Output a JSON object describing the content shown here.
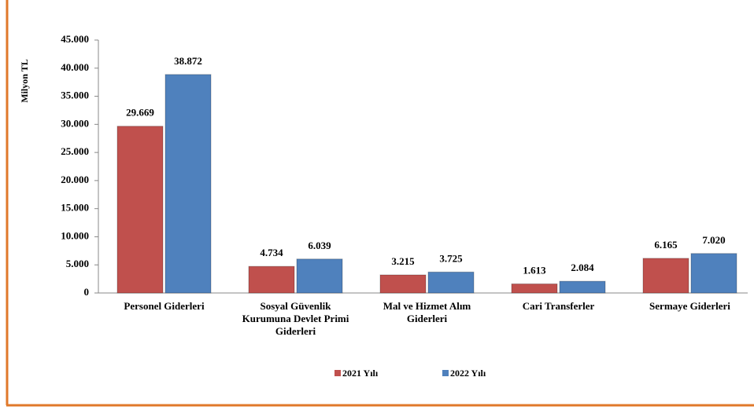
{
  "chart_data": {
    "type": "bar",
    "y_label": "Milyon TL",
    "categories": [
      "Personel Giderleri",
      "Sosyal Güvenlik Kurumuna Devlet Primi Giderleri",
      "Mal ve Hizmet Alım Giderleri",
      "Cari Transferler",
      "Sermaye Giderleri"
    ],
    "series": [
      {
        "name": "2021 Yılı",
        "color": "#c0504d",
        "values": [
          29669,
          4734,
          3215,
          1613,
          6165
        ],
        "value_labels": [
          "29.669",
          "4.734",
          "3.215",
          "1.613",
          "6.165"
        ]
      },
      {
        "name": "2022 Yılı",
        "color": "#4f81bd",
        "values": [
          38872,
          6039,
          3725,
          2084,
          7020
        ],
        "value_labels": [
          "38.872",
          "6.039",
          "3.725",
          "2.084",
          "7.020"
        ]
      }
    ],
    "ylim": [
      0,
      45000
    ],
    "yticks": [
      0,
      {
        "value": 5000,
        "label": "5.000"
      },
      {
        "value": 10000,
        "label": "10.000"
      },
      {
        "value": 15000,
        "label": "15.000"
      },
      {
        "value": 20000,
        "label": "20.000"
      },
      {
        "value": 25000,
        "label": "25.000"
      },
      {
        "value": 30000,
        "label": "30.000"
      },
      {
        "value": 35000,
        "label": "35.000"
      },
      {
        "value": 40000,
        "label": "40.000"
      },
      {
        "value": 45000,
        "label": "45.000"
      }
    ],
    "legend": "bottom"
  }
}
